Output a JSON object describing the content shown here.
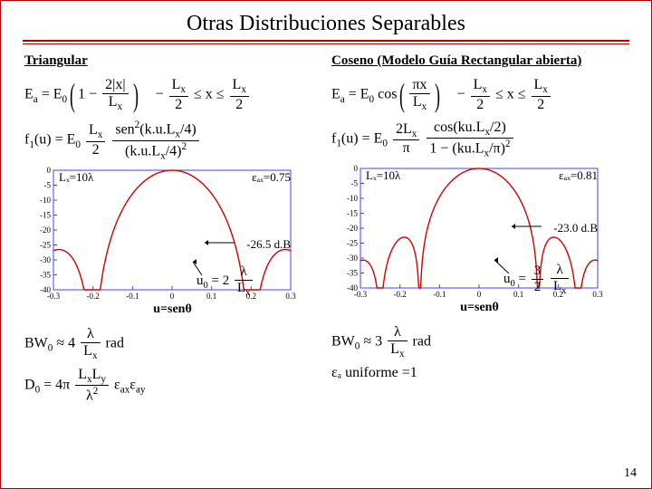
{
  "title": "Otras Distribuciones Separables",
  "page_number": "14",
  "left": {
    "section": "Triangular",
    "eq_ea": "E_a = E_0 (1 − 2|x|/L_x)    −L_x/2 ≤ x ≤ L_x/2",
    "eq_f1": "f_1(u) = E_0 (L_x/2) · sen²(k u L_x/4) / (k u L_x/4)²",
    "chart": {
      "xlim": [
        -0.3,
        0.3
      ],
      "xticks": [
        -0.3,
        -0.2,
        -0.1,
        0,
        0.1,
        0.2,
        0.3
      ],
      "ylim": [
        -40,
        0
      ],
      "yticks": [
        0,
        -5,
        -10,
        -15,
        -20,
        -25,
        -30,
        -35,
        -40
      ],
      "curve_color": "#d00000",
      "axis_color": "#4040ff",
      "Lx_label": "Lₓ=10λ",
      "eax_label": "εₐₓ=0.75",
      "sll_label": "-26.5 d.B",
      "u0_label": "u₀ = 2 λ/Lₓ"
    },
    "xlabel": "u=senθ",
    "bw_label": "BW₀ ≈ 4 λ/Lₓ rad",
    "d0_label": "D₀ = 4π (Lₓ L_y / λ²) εₐₓ εₐᵧ"
  },
  "right": {
    "section": "Coseno (Modelo Guía Rectangular abierta)",
    "eq_ea": "E_a = E_0 cos(πx/L_x)    −L_x/2 ≤ x ≤ L_x/2",
    "eq_f1": "f_1(u) = E_0 (2L_x/π) · cos(k u L_x/2) / (1 − (k u L_x/π)²)",
    "chart": {
      "xlim": [
        -0.3,
        0.3
      ],
      "xticks": [
        -0.3,
        -0.2,
        -0.1,
        0,
        0.1,
        0.2,
        0.3
      ],
      "ylim": [
        -40,
        0
      ],
      "yticks": [
        0,
        -5,
        -10,
        -15,
        -20,
        -25,
        -30,
        -35,
        -40
      ],
      "curve_color": "#d00000",
      "axis_color": "#4040ff",
      "Lx_label": "Lₓ=10λ",
      "eax_label": "εₐₓ=0.81",
      "sll_label": "-23.0 d.B",
      "u0_label": "u₀ = (3/2) λ/Lₓ"
    },
    "xlabel": "u=senθ",
    "bw_label": "BW₀ ≈ 3 λ/Lₓ rad",
    "ea_uniform": "εₐ uniforme =1"
  }
}
